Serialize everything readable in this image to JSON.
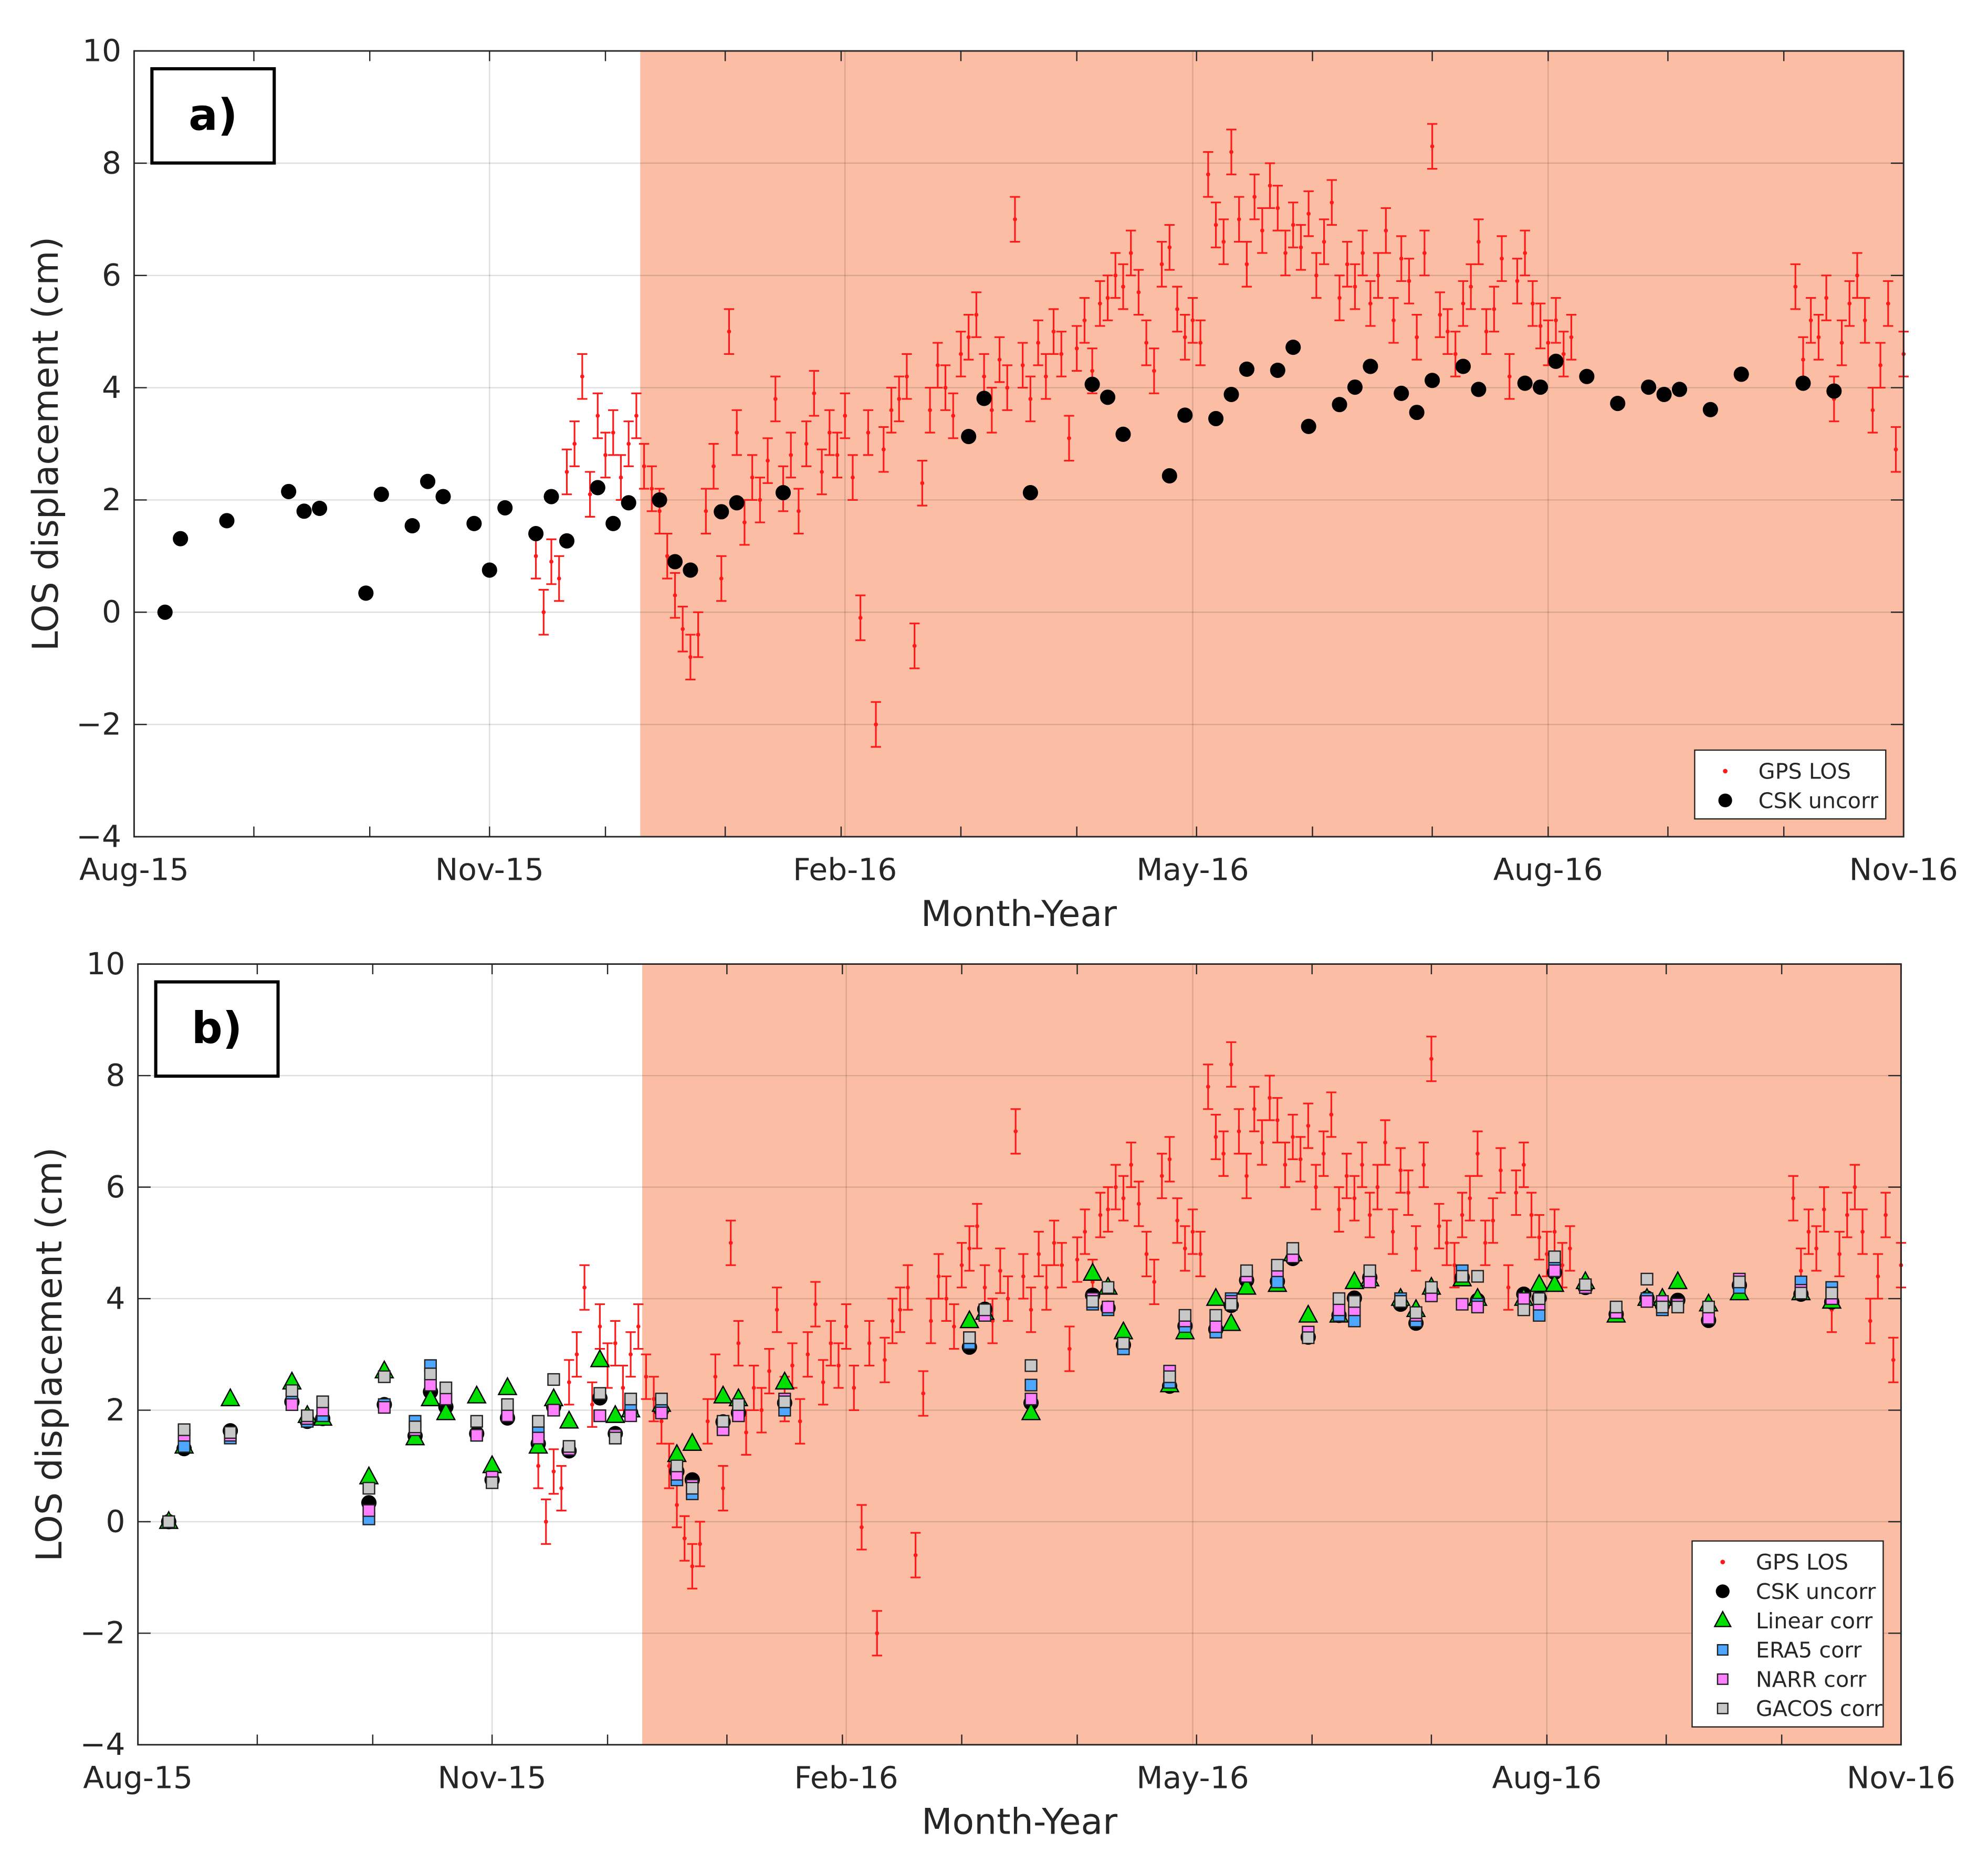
{
  "colors": {
    "shade": "#fbbea4",
    "gps": "#ff1a1a",
    "csk": "#000000",
    "linear": "#00e000",
    "era5": "#4da6ff",
    "narr": "#ff80ff",
    "gacos": "#c8c8c8"
  },
  "chart_data": [
    {
      "type": "scatter",
      "panel_label": "a)",
      "xlabel": "Month-Year",
      "ylabel": "LOS displacement (cm)",
      "x_units": "days since 1 Aug 2015",
      "xlim": [
        0,
        458
      ],
      "ylim": [
        -4,
        10
      ],
      "yticks": [
        -4,
        -2,
        0,
        2,
        4,
        6,
        8,
        10
      ],
      "xticks": [
        {
          "day": 0,
          "label": "Aug-15"
        },
        {
          "day": 92,
          "label": "Nov-15"
        },
        {
          "day": 184,
          "label": "Feb-16"
        },
        {
          "day": 274,
          "label": "May-16"
        },
        {
          "day": 366,
          "label": "Aug-16"
        },
        {
          "day": 458,
          "label": "Nov-16"
        }
      ],
      "grid": true,
      "shaded_from_day": 131,
      "legend_position": "bottom-right",
      "series": [
        "gps",
        "csk"
      ]
    },
    {
      "type": "scatter",
      "panel_label": "b)",
      "xlabel": "Month-Year",
      "ylabel": "LOS displacement (cm)",
      "x_units": "days since 1 Aug 2015",
      "xlim": [
        0,
        458
      ],
      "ylim": [
        -4,
        10
      ],
      "yticks": [
        -4,
        -2,
        0,
        2,
        4,
        6,
        8,
        10
      ],
      "xticks": [
        {
          "day": 0,
          "label": "Aug-15"
        },
        {
          "day": 92,
          "label": "Nov-15"
        },
        {
          "day": 184,
          "label": "Feb-16"
        },
        {
          "day": 274,
          "label": "May-16"
        },
        {
          "day": 366,
          "label": "Aug-16"
        },
        {
          "day": 458,
          "label": "Nov-16"
        }
      ],
      "grid": true,
      "shaded_from_day": 131,
      "legend_position": "bottom-right",
      "series": [
        "gps",
        "csk",
        "linear",
        "era5",
        "narr",
        "gacos"
      ]
    }
  ],
  "legend_labels": {
    "gps": "GPS LOS",
    "csk": "CSK uncorr",
    "linear": "Linear corr",
    "era5": "ERA5 corr",
    "narr": "NARR corr",
    "gacos": "GACOS corr"
  },
  "gps": {
    "error_cm": 0.4,
    "segments": [
      {
        "start_day": 104,
        "step_days": 2,
        "values": [
          1.0,
          0.0,
          0.9,
          0.6,
          2.5,
          3.0,
          4.2,
          2.1,
          3.5,
          2.8,
          3.2,
          2.4,
          3.0,
          3.5,
          2.6,
          2.2,
          1.8,
          1.0,
          0.3,
          -0.3,
          -0.8,
          -0.4,
          1.8,
          2.6,
          0.6,
          5.0,
          3.2,
          1.6,
          2.4,
          2.0,
          2.7,
          3.8,
          2.2,
          2.8,
          1.8,
          3.0,
          3.9,
          2.5,
          3.2,
          2.8,
          3.5,
          2.4,
          -0.1,
          3.2,
          -2.0,
          2.9,
          3.6,
          3.8,
          4.2,
          -0.6,
          2.3,
          3.6,
          4.4,
          4.0,
          3.5,
          4.6,
          4.9,
          5.3,
          4.2,
          3.6,
          4.5,
          4.0,
          7.0,
          4.4,
          3.8,
          4.8,
          4.2,
          5.0,
          4.6,
          3.1,
          4.7,
          5.2,
          4.3,
          5.5,
          5.6,
          6.0,
          5.8,
          6.4,
          5.7,
          4.8,
          4.3,
          6.2,
          6.5,
          5.4,
          4.9,
          5.2,
          4.8,
          7.8,
          6.9,
          6.6,
          8.2,
          7.0,
          6.2,
          7.4,
          6.8,
          7.6,
          7.2,
          6.4,
          6.9,
          6.5,
          7.1,
          6.0,
          6.6,
          7.3,
          5.6,
          6.2,
          5.8,
          6.4,
          5.5,
          6.0,
          6.8,
          5.2,
          6.3,
          5.9,
          4.9,
          6.4,
          8.3,
          5.3,
          5.0,
          4.6,
          5.5,
          5.8,
          6.6,
          5.0,
          5.4,
          6.3,
          4.2,
          5.9,
          6.4,
          5.5,
          5.1,
          4.8,
          5.2,
          4.6,
          4.9
        ]
      },
      {
        "start_day": 430,
        "step_days": 2,
        "values": [
          5.8,
          4.5,
          5.2,
          4.9,
          5.6,
          3.8,
          4.8,
          5.5,
          6.0,
          5.2,
          3.6,
          4.4,
          5.5,
          2.9,
          4.6
        ]
      }
    ]
  },
  "acquisitions": {
    "days": [
      8,
      12,
      24,
      40,
      44,
      48,
      60,
      64,
      72,
      76,
      80,
      88,
      92,
      96,
      104,
      108,
      112,
      120,
      124,
      128,
      136,
      140,
      144,
      152,
      156,
      168,
      216,
      220,
      232,
      248,
      252,
      256,
      268,
      272,
      280,
      284,
      288,
      296,
      300,
      304,
      312,
      316,
      320,
      328,
      332,
      336,
      344,
      348,
      360,
      364,
      368,
      376,
      384,
      392,
      396,
      400,
      408,
      416,
      432,
      440
    ],
    "csk": [
      0.0,
      1.31,
      1.63,
      2.15,
      1.8,
      1.85,
      0.34,
      2.1,
      1.54,
      2.33,
      2.06,
      1.58,
      0.75,
      1.86,
      1.4,
      2.06,
      1.27,
      2.22,
      1.58,
      1.95,
      2.0,
      0.9,
      0.75,
      1.79,
      1.95,
      2.13,
      3.13,
      3.81,
      2.13,
      4.06,
      3.83,
      3.17,
      2.43,
      3.51,
      3.45,
      3.88,
      4.33,
      4.31,
      4.72,
      3.31,
      3.7,
      4.01,
      4.38,
      3.9,
      3.56,
      4.13,
      4.38,
      3.97,
      4.08,
      4.01,
      4.47,
      4.2,
      3.72,
      4.01,
      3.88,
      3.97,
      3.61,
      4.24,
      4.08,
      3.94
    ],
    "linear": [
      0.0,
      1.35,
      2.2,
      2.5,
      1.9,
      1.85,
      0.8,
      2.7,
      1.5,
      2.2,
      1.95,
      2.25,
      1.0,
      2.4,
      1.35,
      2.2,
      1.8,
      2.9,
      1.9,
      2.0,
      2.1,
      1.2,
      1.4,
      2.25,
      2.2,
      2.5,
      3.6,
      3.75,
      1.95,
      4.45,
      4.2,
      3.4,
      2.45,
      3.4,
      4.0,
      3.55,
      4.2,
      4.25,
      4.8,
      3.7,
      3.7,
      4.3,
      4.35,
      4.0,
      3.8,
      4.2,
      4.35,
      4.0,
      4.0,
      4.25,
      4.25,
      4.3,
      3.7,
      4.0,
      4.0,
      4.3,
      3.9,
      4.1,
      4.1,
      3.95
    ],
    "era5": [
      0.0,
      1.35,
      1.5,
      2.2,
      1.8,
      1.9,
      0.05,
      2.1,
      1.8,
      2.8,
      2.2,
      1.55,
      0.75,
      1.9,
      1.6,
      2.0,
      1.3,
      1.9,
      1.5,
      2.1,
      2.0,
      0.75,
      0.5,
      1.7,
      1.9,
      2.0,
      3.2,
      3.7,
      2.45,
      3.9,
      3.8,
      3.1,
      2.5,
      3.5,
      3.4,
      4.0,
      4.4,
      4.3,
      4.8,
      3.4,
      3.7,
      3.6,
      4.4,
      4.0,
      3.6,
      4.1,
      4.5,
      3.9,
      3.9,
      3.7,
      4.6,
      4.2,
      3.8,
      4.0,
      3.8,
      3.9,
      3.7,
      4.2,
      4.3,
      4.2
    ],
    "narr": [
      0.0,
      1.55,
      1.55,
      2.1,
      1.85,
      2.0,
      0.2,
      2.05,
      1.65,
      2.45,
      2.2,
      1.55,
      0.8,
      1.9,
      1.5,
      2.0,
      1.3,
      1.9,
      1.55,
      1.9,
      1.95,
      0.85,
      0.65,
      1.65,
      1.9,
      2.2,
      3.3,
      3.7,
      2.2,
      4.0,
      3.85,
      3.2,
      2.7,
      3.6,
      3.5,
      3.95,
      4.4,
      4.5,
      4.75,
      3.4,
      3.8,
      3.8,
      4.3,
      3.95,
      3.7,
      4.05,
      3.9,
      3.85,
      4.0,
      3.9,
      4.5,
      4.2,
      3.75,
      3.95,
      3.95,
      3.9,
      3.65,
      4.35,
      4.15,
      4.0
    ],
    "gacos": [
      0.0,
      1.65,
      1.6,
      2.35,
      1.9,
      2.15,
      0.6,
      2.6,
      1.7,
      2.65,
      2.4,
      1.8,
      0.7,
      2.1,
      1.8,
      2.55,
      1.35,
      2.3,
      1.5,
      2.2,
      2.2,
      1.0,
      0.6,
      1.8,
      2.1,
      2.15,
      3.3,
      3.8,
      2.8,
      3.95,
      4.2,
      3.2,
      2.6,
      3.7,
      3.7,
      3.9,
      4.5,
      4.6,
      4.9,
      3.3,
      4.0,
      3.95,
      4.5,
      3.95,
      3.75,
      4.2,
      4.4,
      4.4,
      3.8,
      4.0,
      4.75,
      4.25,
      3.85,
      4.35,
      3.85,
      3.85,
      3.85,
      4.3,
      4.1,
      4.1
    ]
  }
}
